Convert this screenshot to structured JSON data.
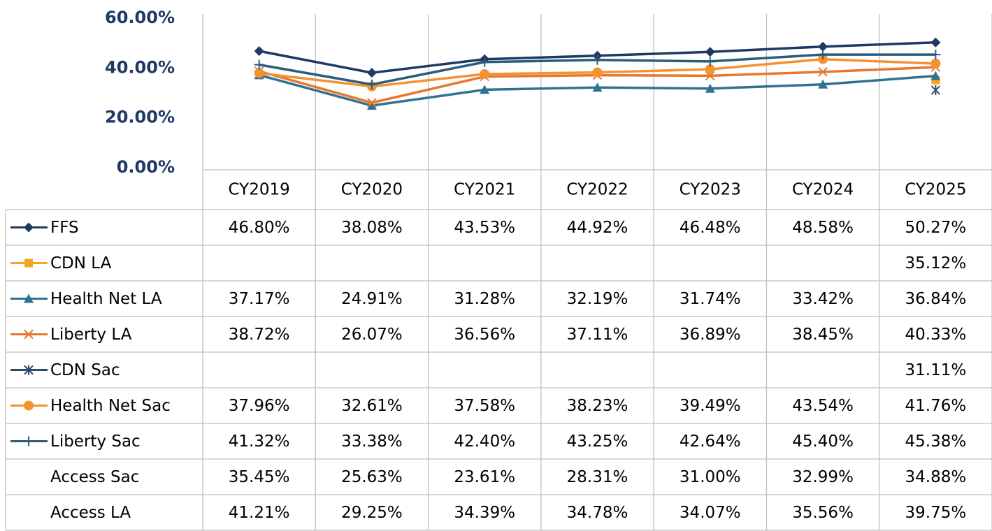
{
  "chart_data": {
    "type": "line",
    "categories": [
      "CY2019",
      "CY2020",
      "CY2021",
      "CY2022",
      "CY2023",
      "CY2024",
      "CY2025"
    ],
    "ylim": [
      0,
      60
    ],
    "yticks": [
      {
        "value": 0,
        "label": "0.00%"
      },
      {
        "value": 20,
        "label": "20.00%"
      },
      {
        "value": 40,
        "label": "40.00%"
      },
      {
        "value": 60,
        "label": "60.00%"
      }
    ],
    "grid": true,
    "legend": "table",
    "series": [
      {
        "name": "FFS",
        "color": "#1f3864",
        "marker": "diamond",
        "line": true,
        "values": [
          46.8,
          38.08,
          43.53,
          44.92,
          46.48,
          48.58,
          50.27
        ],
        "value_labels": [
          "46.80%",
          "38.08%",
          "43.53%",
          "44.92%",
          "46.48%",
          "48.58%",
          "50.27%"
        ]
      },
      {
        "name": "CDN LA",
        "color": "#f5a623",
        "marker": "square",
        "line": true,
        "values": [
          null,
          null,
          null,
          null,
          null,
          null,
          35.12
        ],
        "value_labels": [
          null,
          null,
          null,
          null,
          null,
          null,
          "35.12%"
        ]
      },
      {
        "name": "Health Net LA",
        "color": "#31738f",
        "marker": "triangle",
        "line": true,
        "values": [
          37.17,
          24.91,
          31.28,
          32.19,
          31.74,
          33.42,
          36.84
        ],
        "value_labels": [
          "37.17%",
          "24.91%",
          "31.28%",
          "32.19%",
          "31.74%",
          "33.42%",
          "36.84%"
        ]
      },
      {
        "name": "Liberty LA",
        "color": "#e8772e",
        "marker": "x",
        "line": true,
        "values": [
          38.72,
          26.07,
          36.56,
          37.11,
          36.89,
          38.45,
          40.33
        ],
        "value_labels": [
          "38.72%",
          "26.07%",
          "36.56%",
          "37.11%",
          "36.89%",
          "38.45%",
          "40.33%"
        ]
      },
      {
        "name": "CDN Sac",
        "color": "#2e4a6b",
        "marker": "star",
        "line": true,
        "values": [
          null,
          null,
          null,
          null,
          null,
          null,
          31.11
        ],
        "value_labels": [
          null,
          null,
          null,
          null,
          null,
          null,
          "31.11%"
        ]
      },
      {
        "name": "Health Net Sac",
        "color": "#f39230",
        "marker": "circle",
        "line": true,
        "values": [
          37.96,
          32.61,
          37.58,
          38.23,
          39.49,
          43.54,
          41.76
        ],
        "value_labels": [
          "37.96%",
          "32.61%",
          "37.58%",
          "38.23%",
          "39.49%",
          "43.54%",
          "41.76%"
        ]
      },
      {
        "name": "Liberty Sac",
        "color": "#2c5c7c",
        "marker": "plus",
        "line": true,
        "values": [
          41.32,
          33.38,
          42.4,
          43.25,
          42.64,
          45.4,
          45.38
        ],
        "value_labels": [
          "41.32%",
          "33.38%",
          "42.40%",
          "43.25%",
          "42.64%",
          "45.40%",
          "45.38%"
        ]
      },
      {
        "name": "Access Sac",
        "color": null,
        "marker": "none",
        "line": false,
        "values": [
          35.45,
          25.63,
          23.61,
          28.31,
          31.0,
          32.99,
          34.88
        ],
        "value_labels": [
          "35.45%",
          "25.63%",
          "23.61%",
          "28.31%",
          "31.00%",
          "32.99%",
          "34.88%"
        ]
      },
      {
        "name": "Access LA",
        "color": null,
        "marker": "none",
        "line": false,
        "values": [
          41.21,
          29.25,
          34.39,
          34.78,
          34.07,
          35.56,
          39.75
        ],
        "value_labels": [
          "41.21%",
          "29.25%",
          "34.39%",
          "34.78%",
          "34.07%",
          "35.56%",
          "39.75%"
        ]
      }
    ]
  }
}
